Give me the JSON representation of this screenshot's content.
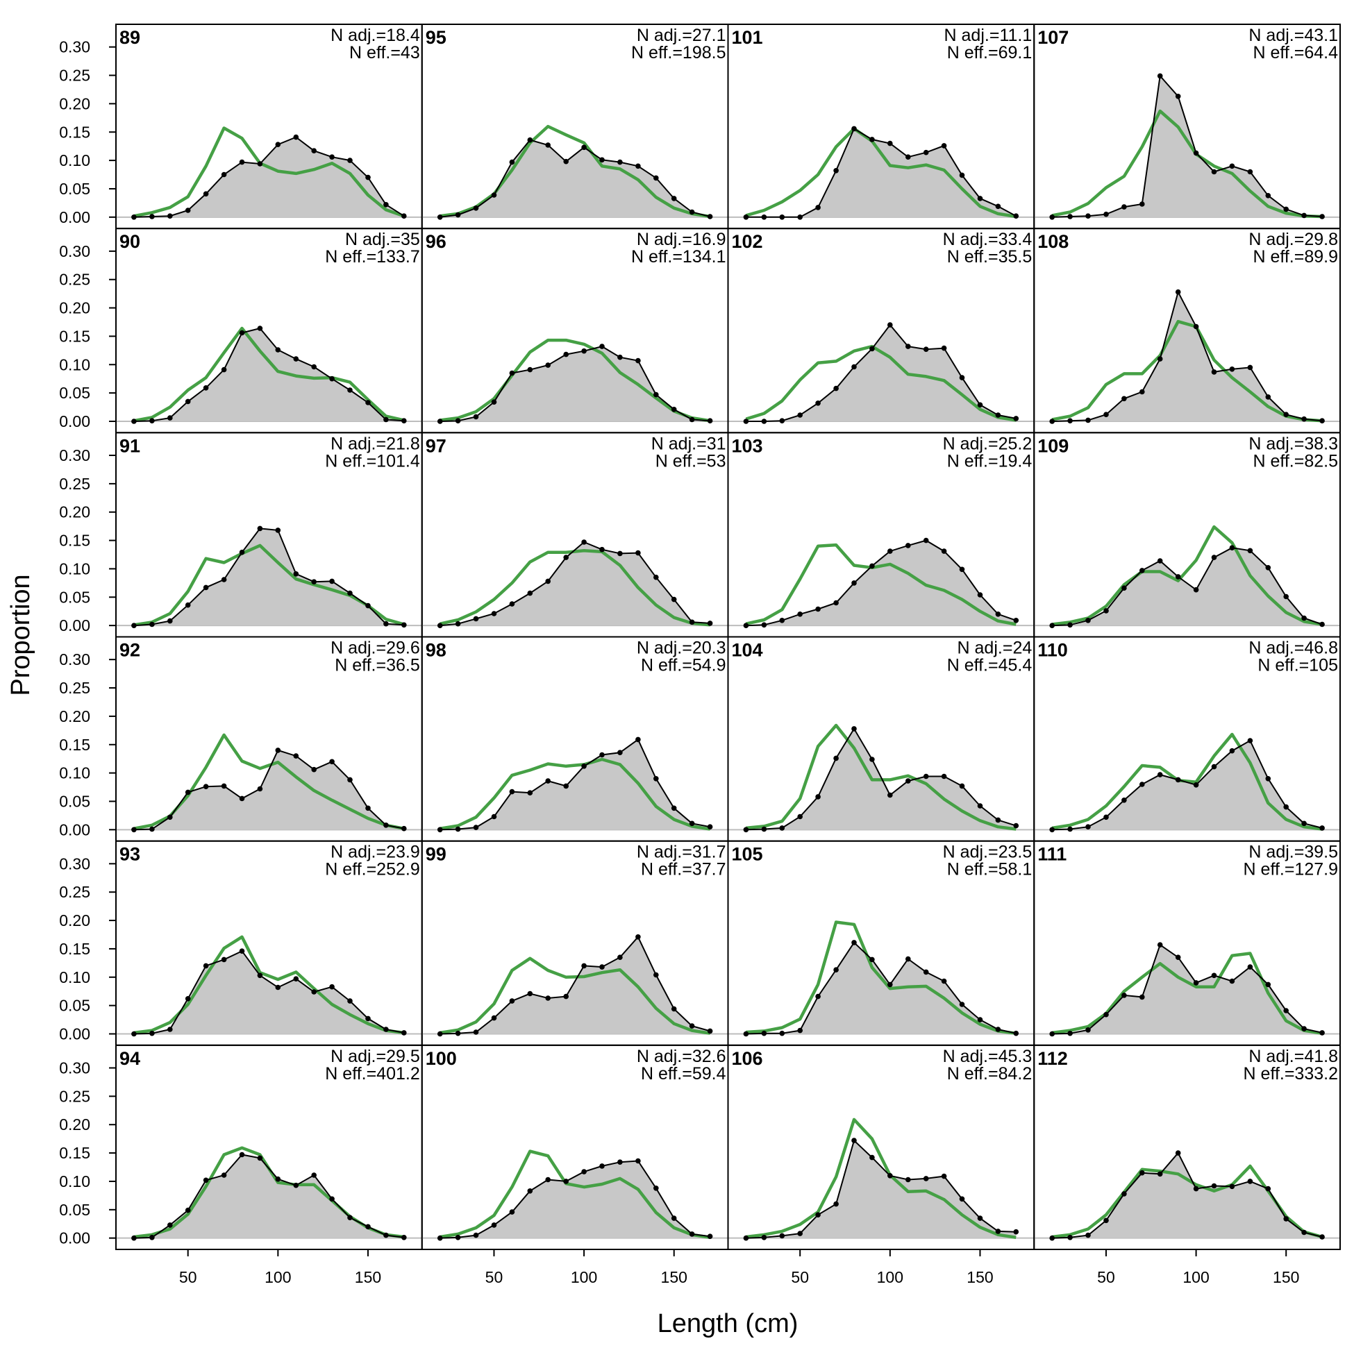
{
  "chart_data": {
    "type": "line",
    "xlabel": "Length (cm)",
    "ylabel": "Proportion",
    "xlim": [
      10,
      180
    ],
    "ylim": [
      -0.02,
      0.34
    ],
    "x": [
      20,
      30,
      40,
      50,
      60,
      70,
      80,
      90,
      100,
      110,
      120,
      130,
      140,
      150,
      160,
      170
    ],
    "xticks": [
      "50",
      "100",
      "150"
    ],
    "yticks": [
      "0.00",
      "0.05",
      "0.10",
      "0.15",
      "0.20",
      "0.25",
      "0.30"
    ],
    "n_adj_label": "N adj.=",
    "n_eff_label": "N eff.=",
    "colors": {
      "observed_fill": "#c8c8c8",
      "observed_line": "#000000",
      "expected": "#45a045",
      "zero_line": "#bdbdbd"
    },
    "panels": [
      {
        "title": "89",
        "n_adj": "18.4",
        "n_eff": "43",
        "obs": [
          0.0,
          0.001,
          0.002,
          0.012,
          0.041,
          0.075,
          0.097,
          0.094,
          0.128,
          0.141,
          0.117,
          0.106,
          0.1,
          0.07,
          0.022,
          0.002
        ],
        "exp": [
          0.002,
          0.008,
          0.017,
          0.036,
          0.09,
          0.157,
          0.139,
          0.095,
          0.081,
          0.077,
          0.084,
          0.095,
          0.077,
          0.039,
          0.013,
          0.002
        ]
      },
      {
        "title": "90",
        "n_adj": "35",
        "n_eff": "133.7",
        "obs": [
          0.0,
          0.001,
          0.006,
          0.035,
          0.059,
          0.091,
          0.156,
          0.164,
          0.126,
          0.11,
          0.096,
          0.075,
          0.055,
          0.033,
          0.003,
          0.001
        ],
        "exp": [
          0.001,
          0.007,
          0.025,
          0.055,
          0.077,
          0.121,
          0.164,
          0.124,
          0.088,
          0.08,
          0.076,
          0.077,
          0.069,
          0.038,
          0.009,
          0.002
        ]
      },
      {
        "title": "91",
        "n_adj": "21.8",
        "n_eff": "101.4",
        "obs": [
          0.0,
          0.002,
          0.008,
          0.036,
          0.067,
          0.081,
          0.129,
          0.171,
          0.168,
          0.091,
          0.077,
          0.078,
          0.057,
          0.035,
          0.003,
          0.001
        ],
        "exp": [
          0.001,
          0.006,
          0.021,
          0.06,
          0.118,
          0.111,
          0.127,
          0.141,
          0.111,
          0.082,
          0.072,
          0.063,
          0.053,
          0.035,
          0.011,
          0.002
        ]
      },
      {
        "title": "92",
        "n_adj": "29.6",
        "n_eff": "36.5",
        "obs": [
          0.0,
          0.001,
          0.022,
          0.066,
          0.076,
          0.077,
          0.055,
          0.072,
          0.14,
          0.13,
          0.106,
          0.12,
          0.088,
          0.038,
          0.008,
          0.002
        ],
        "exp": [
          0.002,
          0.008,
          0.024,
          0.06,
          0.11,
          0.167,
          0.121,
          0.108,
          0.119,
          0.093,
          0.069,
          0.052,
          0.036,
          0.02,
          0.008,
          0.002
        ]
      },
      {
        "title": "93",
        "n_adj": "23.9",
        "n_eff": "252.9",
        "obs": [
          0.0,
          0.001,
          0.008,
          0.062,
          0.12,
          0.131,
          0.146,
          0.103,
          0.082,
          0.097,
          0.074,
          0.083,
          0.058,
          0.027,
          0.008,
          0.002
        ],
        "exp": [
          0.002,
          0.006,
          0.02,
          0.052,
          0.103,
          0.151,
          0.171,
          0.108,
          0.096,
          0.109,
          0.08,
          0.052,
          0.034,
          0.018,
          0.006,
          0.002
        ]
      },
      {
        "title": "94",
        "n_adj": "29.5",
        "n_eff": "401.2",
        "obs": [
          0.0,
          0.001,
          0.023,
          0.049,
          0.102,
          0.111,
          0.147,
          0.141,
          0.104,
          0.093,
          0.111,
          0.069,
          0.036,
          0.02,
          0.005,
          0.001
        ],
        "exp": [
          0.002,
          0.006,
          0.016,
          0.042,
          0.091,
          0.147,
          0.159,
          0.147,
          0.098,
          0.094,
          0.094,
          0.066,
          0.038,
          0.018,
          0.006,
          0.002
        ]
      },
      {
        "title": "95",
        "n_adj": "27.1",
        "n_eff": "198.5",
        "obs": [
          0.0,
          0.004,
          0.016,
          0.039,
          0.097,
          0.136,
          0.127,
          0.098,
          0.123,
          0.101,
          0.097,
          0.09,
          0.069,
          0.033,
          0.009,
          0.001
        ],
        "exp": [
          0.002,
          0.006,
          0.018,
          0.041,
          0.083,
          0.131,
          0.16,
          0.145,
          0.131,
          0.09,
          0.085,
          0.066,
          0.035,
          0.016,
          0.006,
          0.001
        ]
      },
      {
        "title": "96",
        "n_adj": "16.9",
        "n_eff": "134.1",
        "obs": [
          0.0,
          0.001,
          0.008,
          0.034,
          0.085,
          0.091,
          0.099,
          0.118,
          0.124,
          0.132,
          0.113,
          0.107,
          0.047,
          0.021,
          0.003,
          0.001
        ],
        "exp": [
          0.002,
          0.006,
          0.017,
          0.04,
          0.081,
          0.122,
          0.143,
          0.143,
          0.136,
          0.12,
          0.086,
          0.065,
          0.041,
          0.018,
          0.006,
          0.001
        ]
      },
      {
        "title": "97",
        "n_adj": "31",
        "n_eff": "53",
        "obs": [
          0.0,
          0.003,
          0.012,
          0.021,
          0.038,
          0.057,
          0.078,
          0.12,
          0.147,
          0.134,
          0.127,
          0.128,
          0.085,
          0.046,
          0.006,
          0.004
        ],
        "exp": [
          0.003,
          0.01,
          0.024,
          0.046,
          0.075,
          0.112,
          0.129,
          0.129,
          0.132,
          0.13,
          0.106,
          0.067,
          0.036,
          0.014,
          0.004,
          0.001
        ]
      },
      {
        "title": "98",
        "n_adj": "20.3",
        "n_eff": "54.9",
        "obs": [
          0.0,
          0.001,
          0.004,
          0.023,
          0.067,
          0.065,
          0.086,
          0.077,
          0.112,
          0.132,
          0.136,
          0.159,
          0.09,
          0.038,
          0.011,
          0.005
        ],
        "exp": [
          0.002,
          0.007,
          0.022,
          0.056,
          0.096,
          0.105,
          0.116,
          0.112,
          0.115,
          0.124,
          0.115,
          0.082,
          0.041,
          0.018,
          0.006,
          0.001
        ]
      },
      {
        "title": "99",
        "n_adj": "31.7",
        "n_eff": "37.7",
        "obs": [
          0.0,
          0.001,
          0.003,
          0.028,
          0.058,
          0.071,
          0.063,
          0.066,
          0.12,
          0.118,
          0.135,
          0.171,
          0.104,
          0.044,
          0.014,
          0.005
        ],
        "exp": [
          0.002,
          0.007,
          0.021,
          0.053,
          0.112,
          0.133,
          0.112,
          0.1,
          0.101,
          0.108,
          0.113,
          0.083,
          0.045,
          0.018,
          0.006,
          0.001
        ]
      },
      {
        "title": "100",
        "n_adj": "32.6",
        "n_eff": "59.4",
        "obs": [
          0.0,
          0.001,
          0.005,
          0.023,
          0.046,
          0.083,
          0.103,
          0.1,
          0.117,
          0.127,
          0.134,
          0.136,
          0.088,
          0.035,
          0.007,
          0.003
        ],
        "exp": [
          0.002,
          0.007,
          0.018,
          0.04,
          0.09,
          0.153,
          0.145,
          0.096,
          0.09,
          0.095,
          0.105,
          0.086,
          0.045,
          0.018,
          0.006,
          0.001
        ]
      },
      {
        "title": "101",
        "n_adj": "11.1",
        "n_eff": "69.1",
        "obs": [
          0.0,
          0.0,
          0.0,
          0.0,
          0.017,
          0.082,
          0.156,
          0.137,
          0.13,
          0.106,
          0.114,
          0.126,
          0.074,
          0.033,
          0.019,
          0.002
        ],
        "exp": [
          0.003,
          0.012,
          0.027,
          0.047,
          0.075,
          0.124,
          0.156,
          0.134,
          0.091,
          0.087,
          0.092,
          0.083,
          0.05,
          0.019,
          0.006,
          0.001
        ]
      },
      {
        "title": "102",
        "n_adj": "33.4",
        "n_eff": "35.5",
        "obs": [
          0.0,
          0.0,
          0.001,
          0.011,
          0.032,
          0.058,
          0.096,
          0.128,
          0.17,
          0.132,
          0.127,
          0.129,
          0.077,
          0.029,
          0.011,
          0.005
        ],
        "exp": [
          0.004,
          0.014,
          0.036,
          0.073,
          0.103,
          0.106,
          0.124,
          0.132,
          0.113,
          0.083,
          0.079,
          0.072,
          0.047,
          0.021,
          0.007,
          0.002
        ]
      },
      {
        "title": "103",
        "n_adj": "25.2",
        "n_eff": "19.4",
        "obs": [
          0.0,
          0.001,
          0.009,
          0.02,
          0.029,
          0.04,
          0.075,
          0.105,
          0.131,
          0.141,
          0.15,
          0.131,
          0.099,
          0.054,
          0.02,
          0.009
        ],
        "exp": [
          0.003,
          0.01,
          0.028,
          0.082,
          0.14,
          0.142,
          0.106,
          0.102,
          0.108,
          0.092,
          0.071,
          0.062,
          0.046,
          0.025,
          0.008,
          0.002
        ]
      },
      {
        "title": "104",
        "n_adj": "24",
        "n_eff": "45.4",
        "obs": [
          0.0,
          0.001,
          0.003,
          0.023,
          0.058,
          0.126,
          0.178,
          0.124,
          0.061,
          0.086,
          0.094,
          0.094,
          0.077,
          0.042,
          0.017,
          0.007
        ],
        "exp": [
          0.003,
          0.006,
          0.015,
          0.055,
          0.147,
          0.184,
          0.144,
          0.088,
          0.088,
          0.095,
          0.081,
          0.054,
          0.033,
          0.016,
          0.005,
          0.001
        ]
      },
      {
        "title": "105",
        "n_adj": "23.5",
        "n_eff": "58.1",
        "obs": [
          0.0,
          0.001,
          0.001,
          0.006,
          0.066,
          0.113,
          0.161,
          0.131,
          0.087,
          0.132,
          0.109,
          0.093,
          0.052,
          0.025,
          0.008,
          0.001
        ],
        "exp": [
          0.003,
          0.005,
          0.011,
          0.026,
          0.087,
          0.197,
          0.193,
          0.117,
          0.08,
          0.083,
          0.084,
          0.063,
          0.037,
          0.017,
          0.005,
          0.001
        ]
      },
      {
        "title": "106",
        "n_adj": "45.3",
        "n_eff": "84.2",
        "obs": [
          0.0,
          0.001,
          0.004,
          0.008,
          0.041,
          0.06,
          0.172,
          0.142,
          0.11,
          0.103,
          0.105,
          0.109,
          0.069,
          0.035,
          0.012,
          0.011
        ],
        "exp": [
          0.002,
          0.006,
          0.012,
          0.024,
          0.046,
          0.108,
          0.209,
          0.175,
          0.111,
          0.082,
          0.083,
          0.068,
          0.041,
          0.019,
          0.006,
          0.001
        ]
      },
      {
        "title": "107",
        "n_adj": "43.1",
        "n_eff": "64.4",
        "obs": [
          0.0,
          0.001,
          0.002,
          0.005,
          0.018,
          0.023,
          0.249,
          0.213,
          0.113,
          0.08,
          0.09,
          0.08,
          0.038,
          0.014,
          0.003,
          0.001
        ],
        "exp": [
          0.003,
          0.009,
          0.024,
          0.052,
          0.072,
          0.124,
          0.187,
          0.159,
          0.111,
          0.09,
          0.077,
          0.046,
          0.019,
          0.007,
          0.002,
          0.001
        ]
      },
      {
        "title": "108",
        "n_adj": "29.8",
        "n_eff": "89.9",
        "obs": [
          0.0,
          0.001,
          0.002,
          0.012,
          0.04,
          0.052,
          0.11,
          0.228,
          0.167,
          0.087,
          0.092,
          0.095,
          0.043,
          0.012,
          0.004,
          0.001
        ],
        "exp": [
          0.003,
          0.009,
          0.024,
          0.065,
          0.084,
          0.084,
          0.116,
          0.176,
          0.167,
          0.108,
          0.077,
          0.052,
          0.026,
          0.009,
          0.003,
          0.001
        ]
      },
      {
        "title": "109",
        "n_adj": "38.3",
        "n_eff": "82.5",
        "obs": [
          0.0,
          0.001,
          0.009,
          0.026,
          0.066,
          0.097,
          0.114,
          0.086,
          0.063,
          0.12,
          0.137,
          0.132,
          0.102,
          0.051,
          0.013,
          0.002
        ],
        "exp": [
          0.002,
          0.006,
          0.013,
          0.034,
          0.072,
          0.095,
          0.095,
          0.079,
          0.115,
          0.174,
          0.146,
          0.088,
          0.052,
          0.023,
          0.007,
          0.002
        ]
      },
      {
        "title": "110",
        "n_adj": "46.8",
        "n_eff": "105",
        "obs": [
          0.0,
          0.001,
          0.005,
          0.022,
          0.052,
          0.08,
          0.097,
          0.088,
          0.079,
          0.111,
          0.139,
          0.157,
          0.09,
          0.04,
          0.011,
          0.003
        ],
        "exp": [
          0.003,
          0.008,
          0.018,
          0.042,
          0.076,
          0.113,
          0.11,
          0.087,
          0.084,
          0.13,
          0.168,
          0.118,
          0.047,
          0.018,
          0.005,
          0.001
        ]
      },
      {
        "title": "111",
        "n_adj": "39.5",
        "n_eff": "127.9",
        "obs": [
          0.0,
          0.001,
          0.007,
          0.034,
          0.068,
          0.065,
          0.157,
          0.135,
          0.09,
          0.103,
          0.093,
          0.118,
          0.087,
          0.041,
          0.009,
          0.002
        ],
        "exp": [
          0.002,
          0.006,
          0.013,
          0.036,
          0.075,
          0.1,
          0.124,
          0.1,
          0.083,
          0.083,
          0.138,
          0.142,
          0.072,
          0.023,
          0.006,
          0.001
        ]
      },
      {
        "title": "112",
        "n_adj": "41.8",
        "n_eff": "333.2",
        "obs": [
          0.0,
          0.001,
          0.005,
          0.031,
          0.078,
          0.115,
          0.113,
          0.15,
          0.087,
          0.092,
          0.091,
          0.1,
          0.087,
          0.034,
          0.01,
          0.002
        ],
        "exp": [
          0.002,
          0.006,
          0.016,
          0.041,
          0.081,
          0.121,
          0.118,
          0.113,
          0.094,
          0.083,
          0.094,
          0.127,
          0.083,
          0.038,
          0.011,
          0.002
        ]
      }
    ]
  }
}
